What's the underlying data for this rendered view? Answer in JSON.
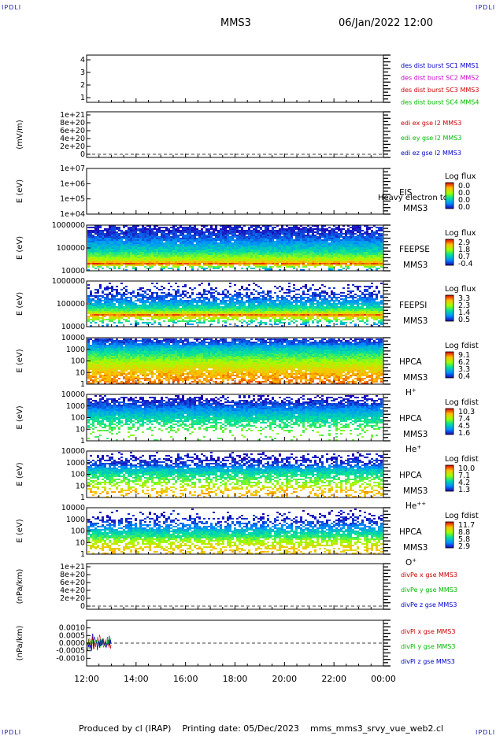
{
  "header": {
    "corner_label": "IPDLI",
    "title": "MMS3",
    "date": "06/Jan/2022 12:00"
  },
  "footer": {
    "text": "Produced by cl (IRAP)    Printing date: 05/Dec/2023    mms_mms3_srvy_vue_web2.cl"
  },
  "colors": {
    "sc1": "#0000cc",
    "sc2": "#cc00cc",
    "sc3": "#cc0000",
    "sc4": "#00bb00"
  },
  "chart_data": {
    "type": "stacked-time-series",
    "x_ticks": [
      "12:00",
      "14:00",
      "16:00",
      "18:00",
      "20:00",
      "22:00",
      "00:00"
    ],
    "panels": [
      {
        "id": "burst",
        "kind": "flags",
        "ylabel": "",
        "ticks": [
          "1",
          "2",
          "3",
          "4"
        ],
        "legend": [
          {
            "text": "des dist burst SC1 MMS1",
            "color": "#0000cc"
          },
          {
            "text": "des dist burst SC2 MMS2",
            "color": "#cc00cc"
          },
          {
            "text": "des dist burst SC3 MMS3",
            "color": "#cc0000"
          },
          {
            "text": "des dist burst SC4 MMS4",
            "color": "#00bb00"
          }
        ]
      },
      {
        "id": "edi",
        "kind": "line-empty",
        "ylabel": "(mV/m)",
        "ticks": [
          "0",
          "2e+20",
          "4e+20",
          "6e+20",
          "8e+20",
          "1e+21"
        ],
        "legend": [
          {
            "text": "edi ex gse l2 MMS3",
            "color": "#cc0000"
          },
          {
            "text": "edi ey gse l2 MMS3",
            "color": "#00bb00"
          },
          {
            "text": "edi ez gse l2 MMS3",
            "color": "#0000cc"
          }
        ]
      },
      {
        "id": "eis",
        "kind": "spectro-empty",
        "ylabel": "E (eV)",
        "ticks": [
          "1e+04",
          "1e+05",
          "1e+06",
          "1e+07"
        ],
        "labels": [
          "EIS",
          "MMS3"
        ],
        "overlay": "Heavy electron to",
        "cbar": {
          "title": "Log flux",
          "ticks": [
            "0.0",
            "0.0",
            "0.0",
            "0.0"
          ]
        }
      },
      {
        "id": "feepse",
        "kind": "spectro",
        "ylabel": "E (eV)",
        "ticks": [
          "10000",
          "100000",
          "1000000"
        ],
        "labels": [
          "FEEPSE",
          "MMS3"
        ],
        "cbar": {
          "title": "Log flux",
          "ticks": [
            "2.9",
            "1.8",
            "0.7",
            "-0.4"
          ]
        }
      },
      {
        "id": "feepsi",
        "kind": "spectro",
        "ylabel": "E (eV)",
        "ticks": [
          "10000",
          "100000",
          "1000000"
        ],
        "labels": [
          "FEEPSI",
          "MMS3"
        ],
        "cbar": {
          "title": "Log flux",
          "ticks": [
            "3.3",
            "2.3",
            "1.4",
            "0.5"
          ]
        }
      },
      {
        "id": "hpca_h",
        "kind": "spectro",
        "ylabel": "E (eV)",
        "ticks": [
          "1",
          "10",
          "100",
          "1000",
          "10000"
        ],
        "labels": [
          "HPCA",
          "MMS3"
        ],
        "species": "H",
        "charge": "+",
        "cbar": {
          "title": "Log fdist",
          "ticks": [
            "9.1",
            "6.2",
            "3.3",
            "0.4"
          ]
        }
      },
      {
        "id": "hpca_he",
        "kind": "spectro",
        "ylabel": "E (eV)",
        "ticks": [
          "1",
          "10",
          "100",
          "1000",
          "10000"
        ],
        "labels": [
          "HPCA",
          "MMS3"
        ],
        "species": "He",
        "charge": "+",
        "cbar": {
          "title": "Log fdist",
          "ticks": [
            "10.3",
            "7.4",
            "4.5",
            "1.6"
          ]
        }
      },
      {
        "id": "hpca_hepp",
        "kind": "spectro",
        "ylabel": "E (eV)",
        "ticks": [
          "1",
          "10",
          "100",
          "1000",
          "10000"
        ],
        "labels": [
          "HPCA",
          "MMS3"
        ],
        "species": "He",
        "charge": "++",
        "cbar": {
          "title": "Log fdist",
          "ticks": [
            "10.0",
            "7.1",
            "4.2",
            "1.3"
          ]
        }
      },
      {
        "id": "hpca_o",
        "kind": "spectro",
        "ylabel": "E (eV)",
        "ticks": [
          "1",
          "10",
          "100",
          "1000",
          "10000"
        ],
        "labels": [
          "HPCA",
          "MMS3"
        ],
        "species": "O",
        "charge": "+",
        "cbar": {
          "title": "Log fdist",
          "ticks": [
            "11.7",
            "8.8",
            "5.8",
            "2.9"
          ]
        }
      },
      {
        "id": "divpe",
        "kind": "line-empty",
        "ylabel": "(nPa/km)",
        "ticks": [
          "0",
          "2e+20",
          "4e+20",
          "6e+20",
          "8e+20",
          "1e+21"
        ],
        "legend": [
          {
            "text": "divPe x gse MMS3",
            "color": "#cc0000"
          },
          {
            "text": "divPe y gse MMS3",
            "color": "#00bb00"
          },
          {
            "text": "divPe z gse MMS3",
            "color": "#0000cc"
          }
        ]
      },
      {
        "id": "divpi",
        "kind": "line",
        "ylabel": "(nPa/km)",
        "ticks": [
          "-0.0010",
          "-0.0005",
          "0.0000",
          "0.0005",
          "0.0010"
        ],
        "yrange": [
          -0.0015,
          0.0015
        ],
        "data_end": "13:00",
        "legend": [
          {
            "text": "divPi x gse MMS3",
            "color": "#cc0000"
          },
          {
            "text": "divPi y gse MMS3",
            "color": "#00bb00"
          },
          {
            "text": "divPi z gse MMS3",
            "color": "#0000cc"
          }
        ]
      }
    ]
  }
}
